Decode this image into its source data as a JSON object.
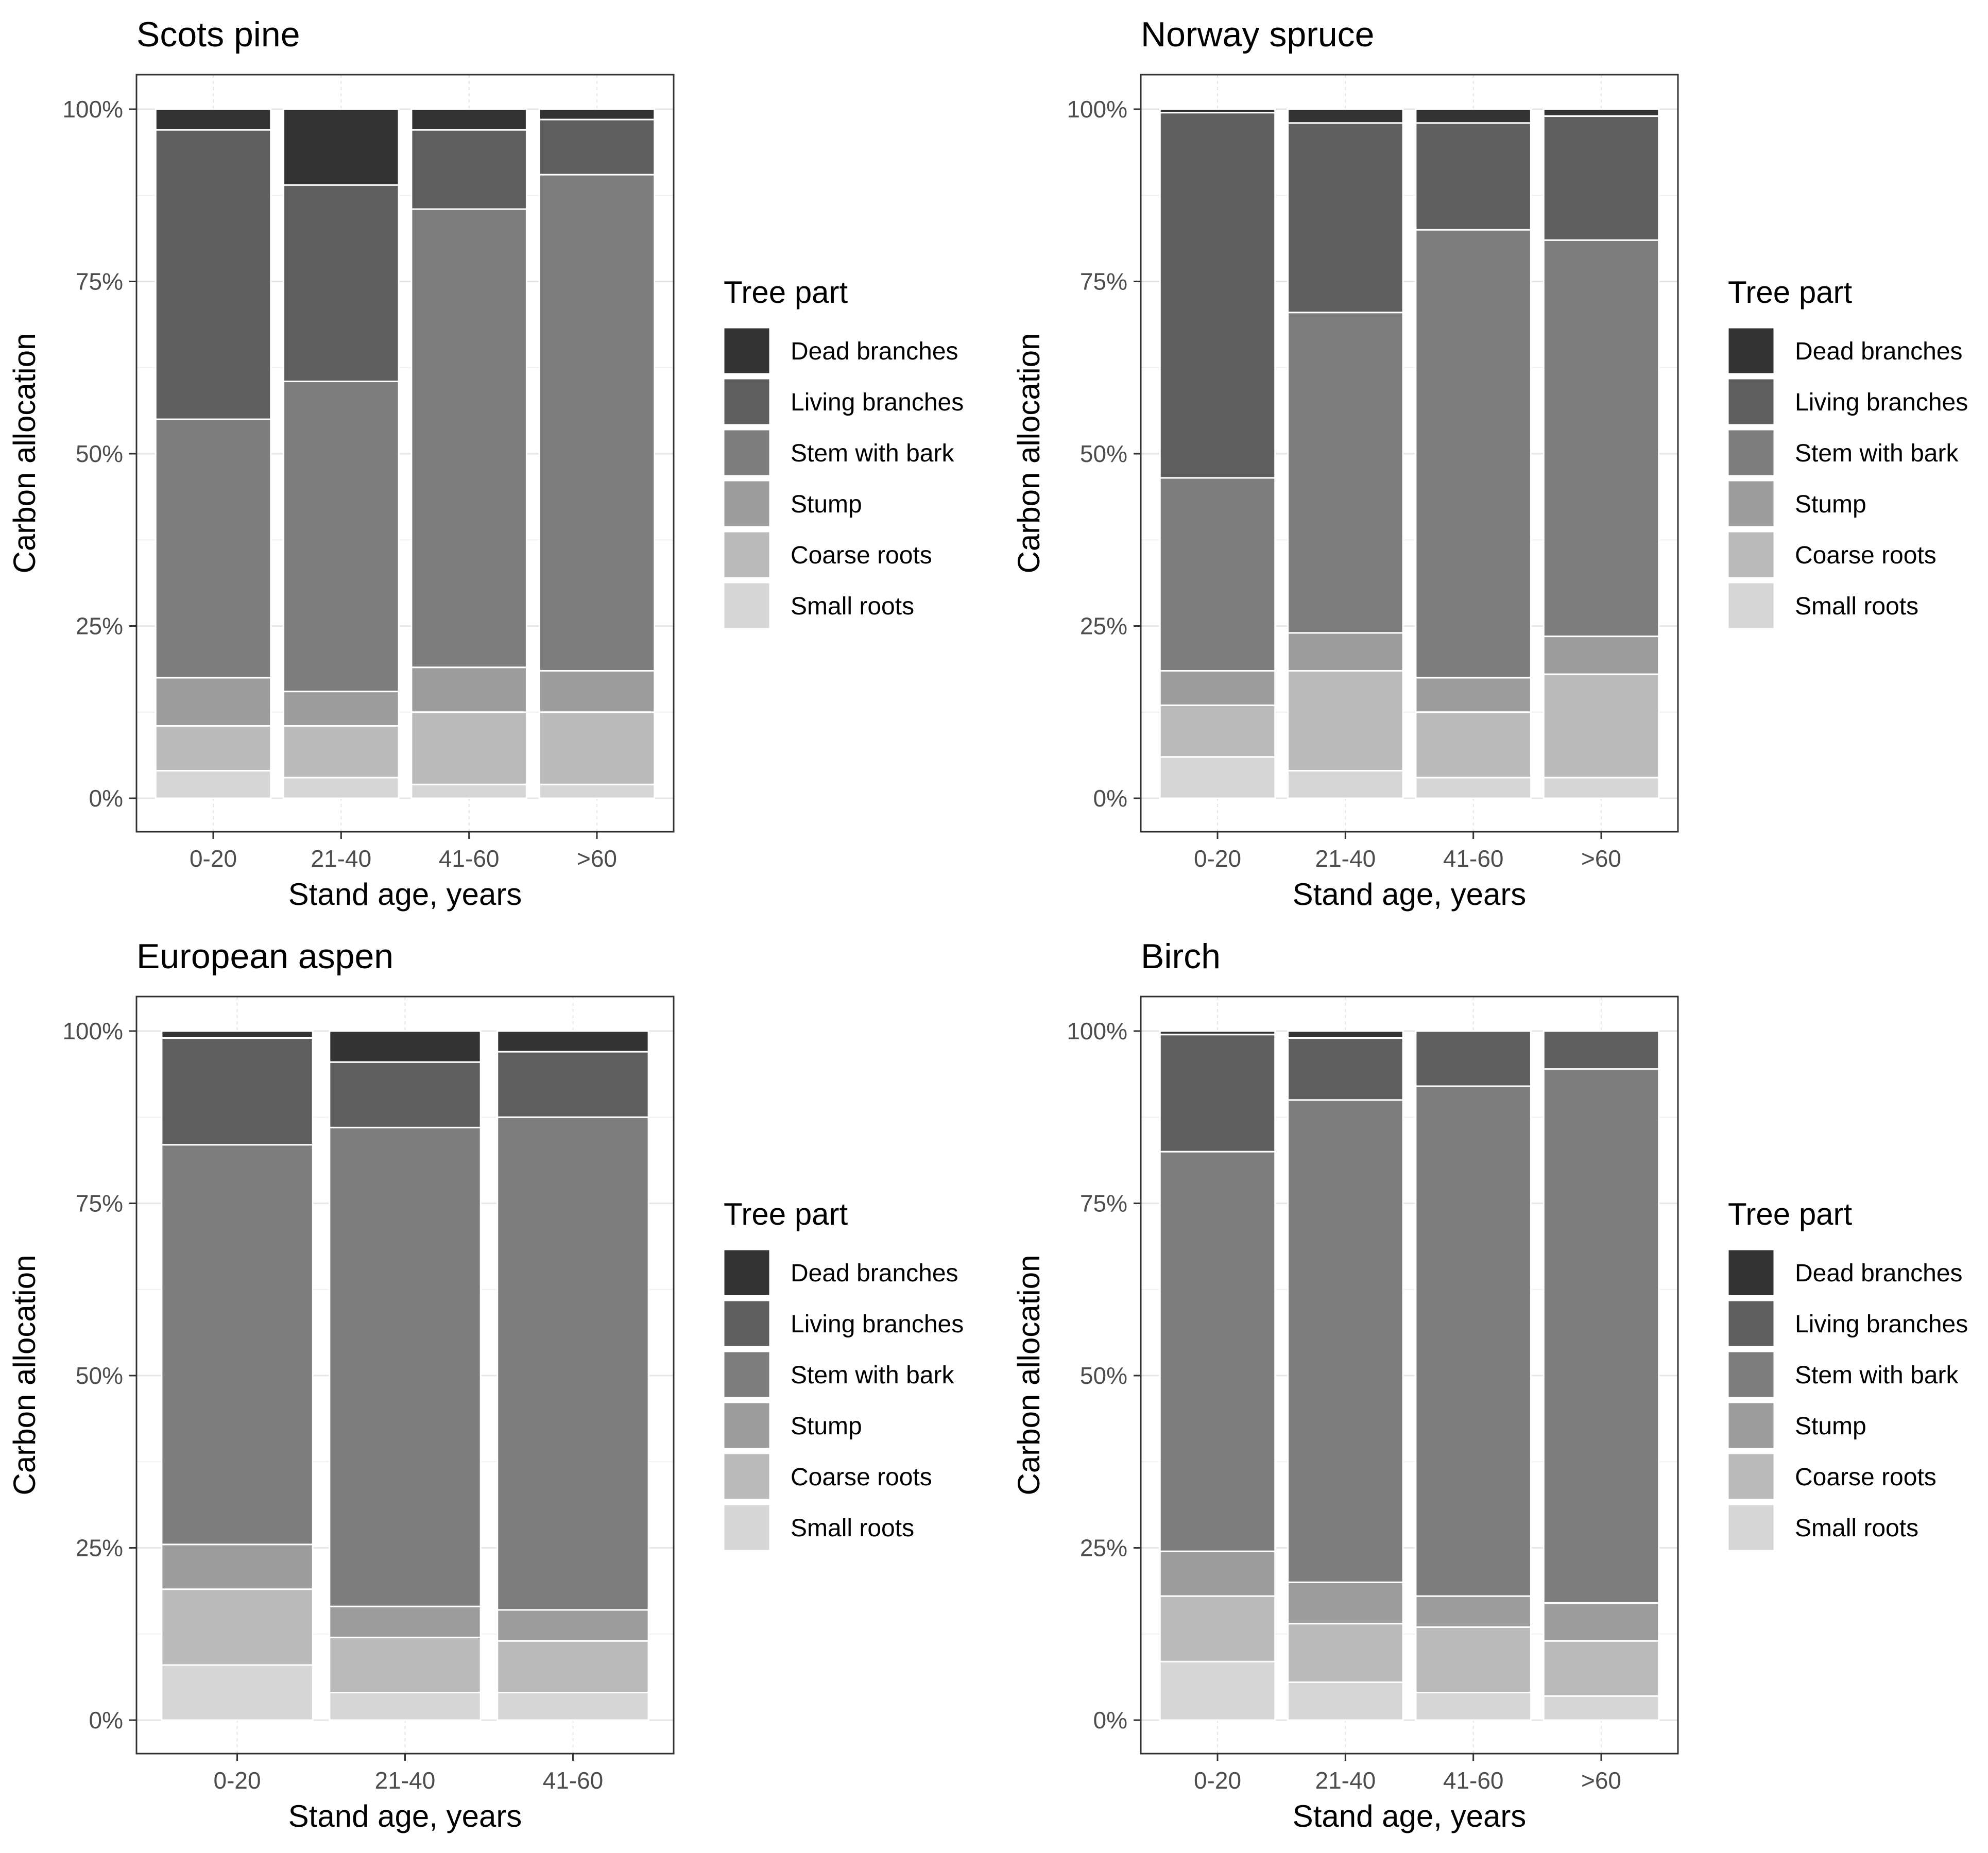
{
  "figure": {
    "panel_order": [
      "Scots pine",
      "Norway spruce",
      "European aspen",
      "Birch"
    ]
  },
  "legend": {
    "title": "Tree part",
    "items": [
      "Dead branches",
      "Living branches",
      "Stem with bark",
      "Stump",
      "Coarse roots",
      "Small roots"
    ]
  },
  "colors": {
    "Dead branches": "#333333",
    "Living branches": "#5e5e5e",
    "Stem with bark": "#7d7d7d",
    "Stump": "#9c9c9c",
    "Coarse roots": "#bababa",
    "Small roots": "#d6d6d6",
    "panel_border": "#333333",
    "grid": "#e6e6e6",
    "bar_outline": "#ffffff",
    "text_tick": "#4d4d4d",
    "text_title": "#000000"
  },
  "chart_data": [
    {
      "type": "bar",
      "stacked": true,
      "title": "Scots pine",
      "xlabel": "Stand age, years",
      "ylabel": "Carbon allocation",
      "ylim": [
        0,
        100
      ],
      "yticks": [
        "0%",
        "25%",
        "50%",
        "75%",
        "100%"
      ],
      "categories": [
        "0-20",
        "21-40",
        "41-60",
        ">60"
      ],
      "series": [
        {
          "name": "Small roots",
          "values": [
            4,
            3,
            2,
            2
          ]
        },
        {
          "name": "Coarse roots",
          "values": [
            6.5,
            7.5,
            10.5,
            10.5
          ]
        },
        {
          "name": "Stump",
          "values": [
            7,
            5,
            6.5,
            6
          ]
        },
        {
          "name": "Stem with bark",
          "values": [
            37.5,
            45,
            66.5,
            72
          ]
        },
        {
          "name": "Living branches",
          "values": [
            42,
            28.5,
            11.5,
            8
          ]
        },
        {
          "name": "Dead branches",
          "values": [
            3,
            11,
            3,
            1.5
          ]
        }
      ]
    },
    {
      "type": "bar",
      "stacked": true,
      "title": "Norway spruce",
      "xlabel": "Stand age, years",
      "ylabel": "Carbon allocation",
      "ylim": [
        0,
        100
      ],
      "yticks": [
        "0%",
        "25%",
        "50%",
        "75%",
        "100%"
      ],
      "categories": [
        "0-20",
        "21-40",
        "41-60",
        ">60"
      ],
      "series": [
        {
          "name": "Small roots",
          "values": [
            6,
            4,
            3,
            3
          ]
        },
        {
          "name": "Coarse roots",
          "values": [
            7.5,
            14.5,
            9.5,
            15
          ]
        },
        {
          "name": "Stump",
          "values": [
            5,
            5.5,
            5,
            5.5
          ]
        },
        {
          "name": "Stem with bark",
          "values": [
            28,
            46.5,
            65,
            57.5
          ]
        },
        {
          "name": "Living branches",
          "values": [
            53,
            27.5,
            15.5,
            18
          ]
        },
        {
          "name": "Dead branches",
          "values": [
            0.5,
            2,
            2,
            1
          ]
        }
      ]
    },
    {
      "type": "bar",
      "stacked": true,
      "title": "European aspen",
      "xlabel": "Stand age, years",
      "ylabel": "Carbon allocation",
      "ylim": [
        0,
        100
      ],
      "yticks": [
        "0%",
        "25%",
        "50%",
        "75%",
        "100%"
      ],
      "categories": [
        "0-20",
        "21-40",
        "41-60"
      ],
      "series": [
        {
          "name": "Small roots",
          "values": [
            8,
            4,
            4
          ]
        },
        {
          "name": "Coarse roots",
          "values": [
            11,
            8,
            7.5
          ]
        },
        {
          "name": "Stump",
          "values": [
            6.5,
            4.5,
            4.5
          ]
        },
        {
          "name": "Stem with bark",
          "values": [
            58,
            69.5,
            71.5
          ]
        },
        {
          "name": "Living branches",
          "values": [
            15.5,
            9.5,
            9.5
          ]
        },
        {
          "name": "Dead branches",
          "values": [
            1,
            4.5,
            3
          ]
        }
      ]
    },
    {
      "type": "bar",
      "stacked": true,
      "title": "Birch",
      "xlabel": "Stand age, years",
      "ylabel": "Carbon allocation",
      "ylim": [
        0,
        100
      ],
      "yticks": [
        "0%",
        "25%",
        "50%",
        "75%",
        "100%"
      ],
      "categories": [
        "0-20",
        "21-40",
        "41-60",
        ">60"
      ],
      "series": [
        {
          "name": "Small roots",
          "values": [
            8.5,
            5.5,
            4,
            3.5
          ]
        },
        {
          "name": "Coarse roots",
          "values": [
            9.5,
            8.5,
            9.5,
            8
          ]
        },
        {
          "name": "Stump",
          "values": [
            6.5,
            6,
            4.5,
            5.5
          ]
        },
        {
          "name": "Stem with bark",
          "values": [
            58,
            70,
            74,
            77.5
          ]
        },
        {
          "name": "Living branches",
          "values": [
            17,
            9,
            8,
            5.5
          ]
        },
        {
          "name": "Dead branches",
          "values": [
            0.5,
            1,
            0,
            0
          ]
        }
      ]
    }
  ]
}
